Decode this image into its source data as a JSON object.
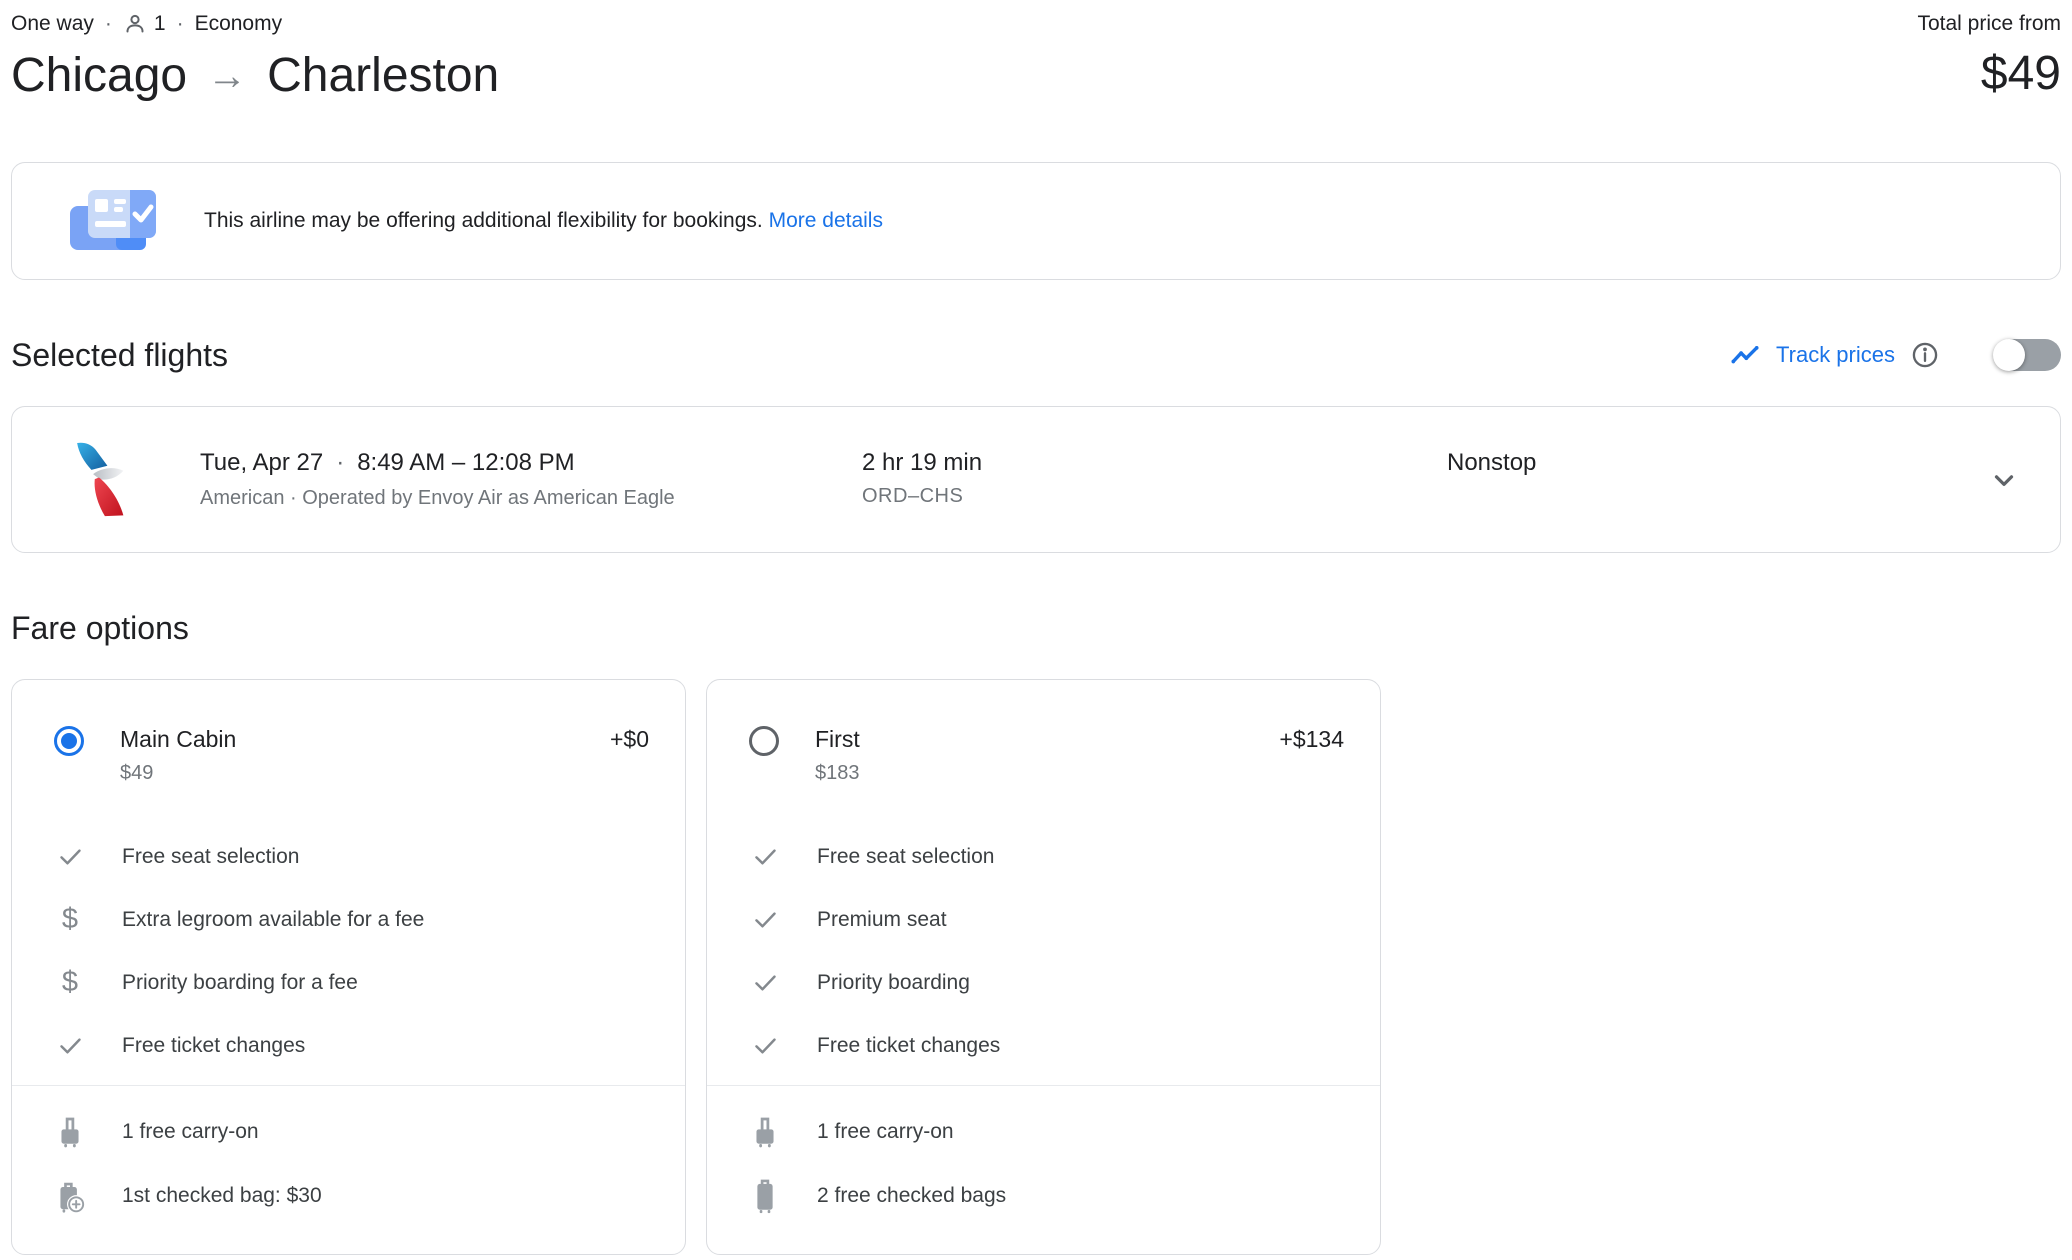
{
  "header": {
    "trip_type": "One way",
    "separator": "·",
    "passenger_count": "1",
    "cabin_class": "Economy",
    "origin": "Chicago",
    "arrow": "→",
    "destination": "Charleston",
    "total_price_label": "Total price from",
    "total_price": "$49"
  },
  "banner": {
    "message": "This airline may be offering additional flexibility for bookings.",
    "link_label": "More details"
  },
  "selected_flights": {
    "title": "Selected flights",
    "track_prices_label": "Track prices",
    "track_prices_enabled": false,
    "flight": {
      "date": "Tue, Apr 27",
      "separator": "·",
      "times": "8:49 AM – 12:08 PM",
      "airline_details": "American · Operated by Envoy Air as American Eagle",
      "duration": "2 hr 19 min",
      "route": "ORD–CHS",
      "stops": "Nonstop"
    }
  },
  "fare_options": {
    "title": "Fare options",
    "cards": [
      {
        "name": "Main Cabin",
        "price": "$49",
        "price_delta": "+$0",
        "selected": true,
        "features": [
          {
            "icon": "check",
            "label": "Free seat selection"
          },
          {
            "icon": "dollar",
            "label": "Extra legroom available for a fee"
          },
          {
            "icon": "dollar",
            "label": "Priority boarding for a fee"
          },
          {
            "icon": "check",
            "label": "Free ticket changes"
          }
        ],
        "baggage": [
          {
            "icon": "carry-on",
            "label": "1 free carry-on"
          },
          {
            "icon": "checked-bag-fee",
            "label": "1st checked bag: $30"
          }
        ]
      },
      {
        "name": "First",
        "price": "$183",
        "price_delta": "+$134",
        "selected": false,
        "features": [
          {
            "icon": "check",
            "label": "Free seat selection"
          },
          {
            "icon": "check",
            "label": "Premium seat"
          },
          {
            "icon": "check",
            "label": "Priority boarding"
          },
          {
            "icon": "check",
            "label": "Free ticket changes"
          }
        ],
        "baggage": [
          {
            "icon": "carry-on",
            "label": "1 free carry-on"
          },
          {
            "icon": "checked-bag",
            "label": "2 free checked bags"
          }
        ]
      }
    ]
  },
  "colors": {
    "accent_blue": "#1a73e8",
    "text_primary": "#202124",
    "text_secondary": "#70757a",
    "border": "#dadce0"
  }
}
